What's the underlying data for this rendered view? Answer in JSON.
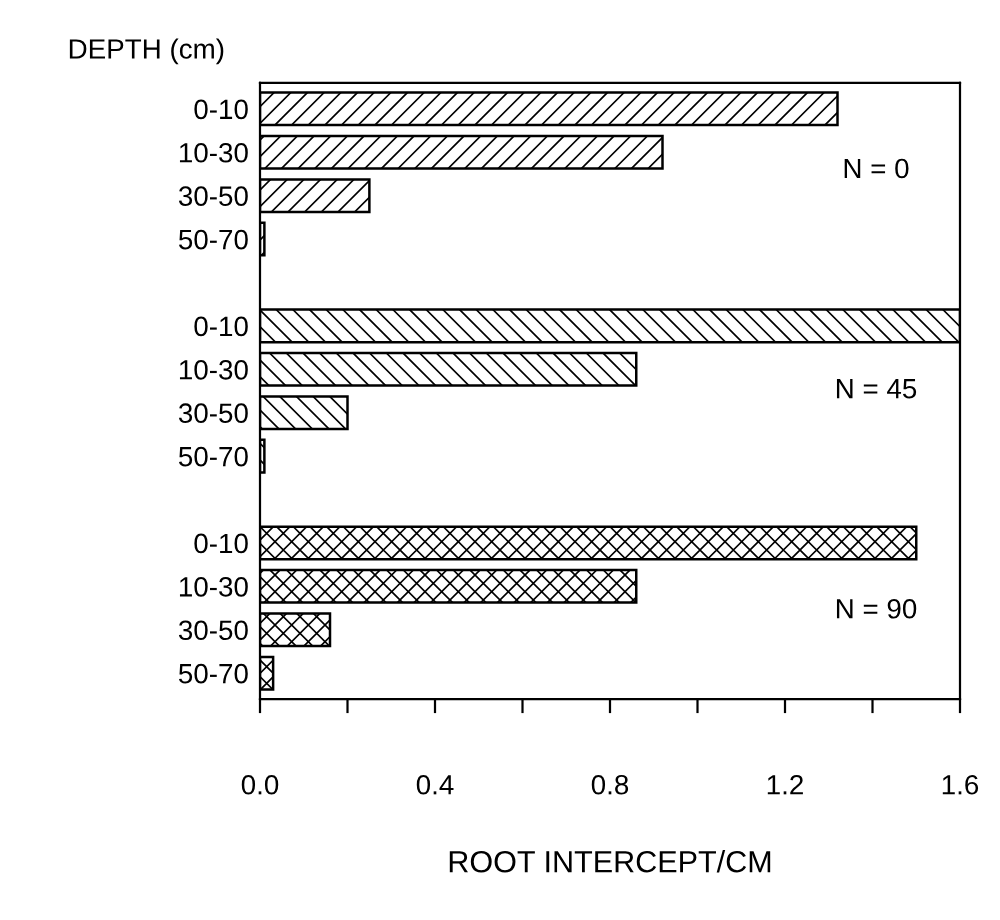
{
  "chart_data": {
    "type": "bar",
    "orientation": "horizontal",
    "xlabel": "ROOT INTERCEPT/CM",
    "ylabel": "DEPTH (cm)",
    "categories": [
      "0-10",
      "10-30",
      "30-50",
      "50-70",
      null,
      "0-10",
      "10-30",
      "30-50",
      "50-70",
      null,
      "0-10",
      "10-30",
      "30-50",
      "50-70"
    ],
    "series": [
      {
        "name": "N = 0",
        "color": "#000000",
        "values": [
          1.32,
          0.92,
          0.25,
          0.01,
          null,
          null,
          null,
          null,
          null,
          null,
          null,
          null,
          null,
          null
        ]
      },
      {
        "name": "N = 45",
        "color": "#000000",
        "values": [
          null,
          null,
          null,
          null,
          null,
          1.6,
          0.86,
          0.2,
          0.01,
          null,
          null,
          null,
          null,
          null
        ]
      },
      {
        "name": "N = 90",
        "color": "#000000",
        "values": [
          null,
          null,
          null,
          null,
          null,
          null,
          null,
          null,
          null,
          null,
          1.5,
          0.86,
          0.16,
          0.03
        ]
      }
    ],
    "xlim": [
      0,
      1.6
    ],
    "xticks": [
      {
        "value": 0,
        "label": "0.0"
      },
      {
        "value": 0.2,
        "label": null
      },
      0.4,
      {
        "value": 0.6,
        "label": null
      },
      0.8,
      {
        "value": 1.0,
        "label": null
      },
      1.2,
      {
        "value": 1.4,
        "label": null
      },
      1.6
    ],
    "grid": false,
    "legend": false
  }
}
